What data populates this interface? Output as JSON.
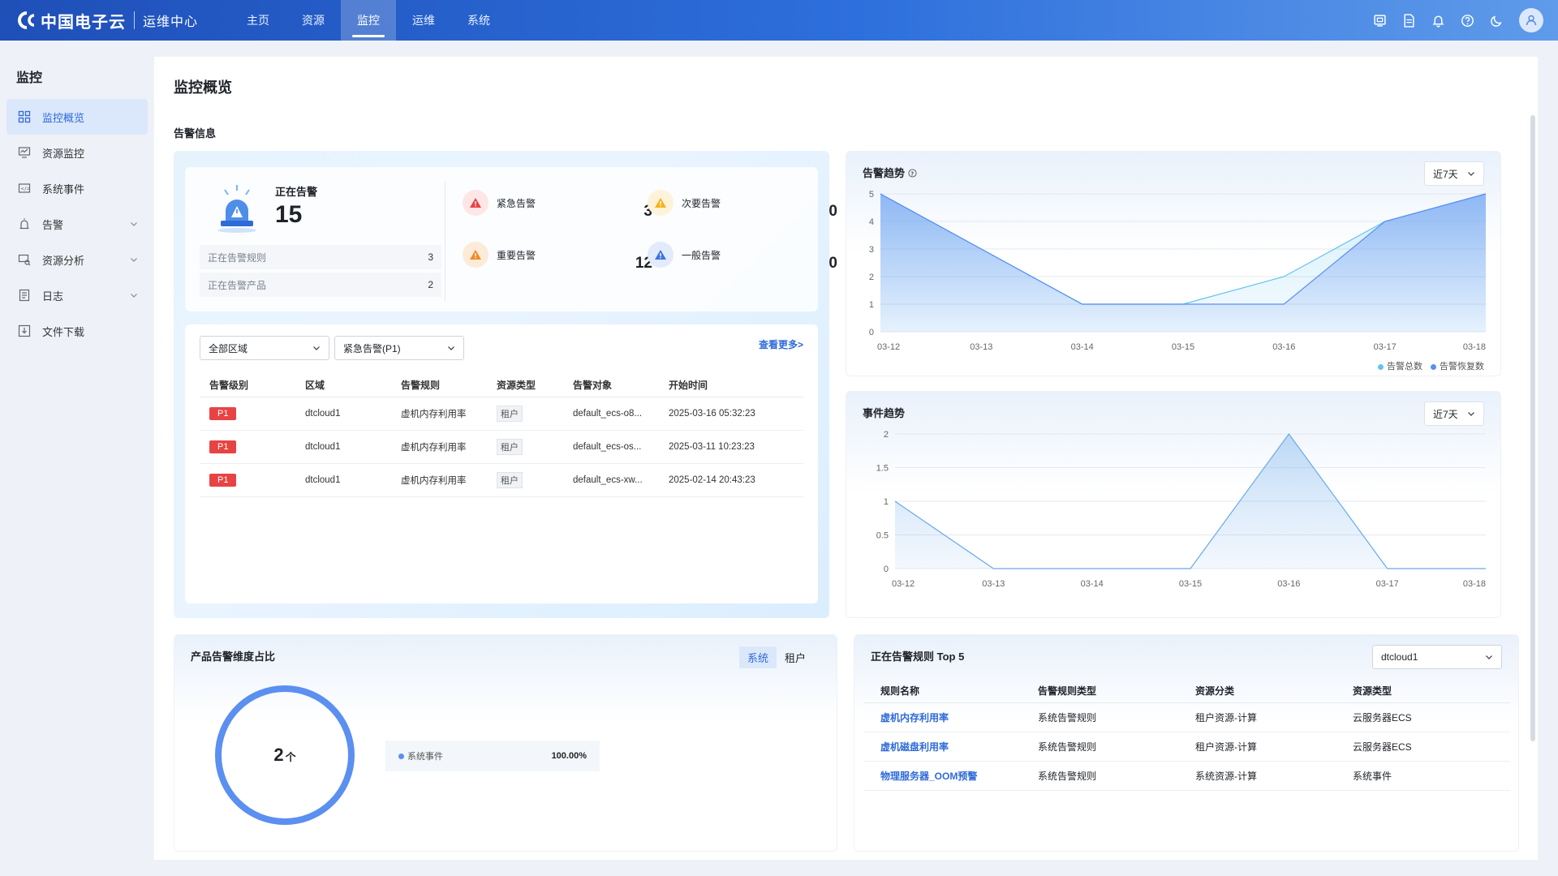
{
  "app": {
    "brand": "中国电子云",
    "subtitle": "运维中心",
    "nav": [
      "主页",
      "资源",
      "监控",
      "运维",
      "系统"
    ],
    "active_nav": "监控",
    "top_icons": [
      "screen-icon",
      "document-icon",
      "bell-icon",
      "help-icon",
      "moon-icon",
      "user-icon"
    ]
  },
  "sidebar": {
    "title": "监控",
    "items": [
      {
        "label": "监控概览",
        "icon": "grid-icon",
        "active": true
      },
      {
        "label": "资源监控",
        "icon": "monitor-icon"
      },
      {
        "label": "系统事件",
        "icon": "event-icon"
      },
      {
        "label": "告警",
        "icon": "alarm-icon",
        "expandable": true
      },
      {
        "label": "资源分析",
        "icon": "analysis-icon",
        "expandable": true
      },
      {
        "label": "日志",
        "icon": "log-icon",
        "expandable": true
      },
      {
        "label": "文件下载",
        "icon": "download-icon"
      }
    ]
  },
  "page": {
    "title": "监控概览",
    "section_alert": "告警信息"
  },
  "alert_summary": {
    "active_label": "正在告警",
    "active_count": "15",
    "rules_label": "正在告警规则",
    "rules_value": "3",
    "products_label": "正在告警产品",
    "products_value": "2",
    "levels": [
      {
        "label": "紧急告警",
        "value": "3",
        "color": "#e84343"
      },
      {
        "label": "次要告警",
        "value": "0",
        "color": "#f5b21b"
      },
      {
        "label": "重要告警",
        "value": "12",
        "color": "#f08a24"
      },
      {
        "label": "一般告警",
        "value": "0",
        "color": "#3f73e0"
      }
    ]
  },
  "alert_list": {
    "region_select": "全部区域",
    "level_select": "紧急告警(P1)",
    "more": "查看更多>",
    "columns": [
      "告警级别",
      "区域",
      "告警规则",
      "资源类型",
      "告警对象",
      "开始时间"
    ],
    "rows": [
      {
        "level": "P1",
        "region": "dtcloud1",
        "rule": "虚机内存利用率",
        "type": "租户",
        "object": "default_ecs-o8...",
        "time": "2025-03-16 05:32:23"
      },
      {
        "level": "P1",
        "region": "dtcloud1",
        "rule": "虚机内存利用率",
        "type": "租户",
        "object": "default_ecs-os...",
        "time": "2025-03-11 10:23:23"
      },
      {
        "level": "P1",
        "region": "dtcloud1",
        "rule": "虚机内存利用率",
        "type": "租户",
        "object": "default_ecs-xw...",
        "time": "2025-02-14 20:43:23"
      }
    ]
  },
  "alert_trend": {
    "title": "告警趋势",
    "range": "近7天"
  },
  "event_trend": {
    "title": "事件趋势",
    "range": "近7天"
  },
  "chart_data": [
    {
      "type": "area",
      "title": "告警趋势",
      "x": [
        "03-12",
        "03-13",
        "03-14",
        "03-15",
        "03-16",
        "03-17",
        "03-18"
      ],
      "ylim": [
        0,
        5
      ],
      "yticks": [
        0,
        1,
        2,
        3,
        4,
        5
      ],
      "series": [
        {
          "name": "告警总数",
          "values": [
            5,
            3,
            1,
            1,
            2,
            4,
            5
          ],
          "color": "#63c3f0"
        },
        {
          "name": "告警恢复数",
          "values": [
            5,
            3,
            1,
            1,
            1,
            4,
            5
          ],
          "color": "#5b8ff0"
        }
      ],
      "legend": "bottom-right"
    },
    {
      "type": "area",
      "title": "事件趋势",
      "x": [
        "03-12",
        "03-13",
        "03-14",
        "03-15",
        "03-16",
        "03-17",
        "03-18"
      ],
      "ylim": [
        0,
        2
      ],
      "yticks": [
        0,
        0.5,
        1,
        1.5,
        2
      ],
      "series": [
        {
          "values": [
            1,
            0,
            0,
            0,
            2,
            0,
            0
          ],
          "color": "#6aa9ea"
        }
      ]
    }
  ],
  "product_ratio": {
    "title": "产品告警维度占比",
    "tabs": [
      "系统",
      "租户"
    ],
    "active_tab": "系统",
    "center_value": "2",
    "center_unit": "个",
    "legend_label": "系统事件",
    "legend_pct": "100.00%",
    "ring_color": "#5b8ff0"
  },
  "top5": {
    "title": "正在告警规则 Top 5",
    "region_select": "dtcloud1",
    "columns": [
      "规则名称",
      "告警规则类型",
      "资源分类",
      "资源类型"
    ],
    "rows": [
      {
        "name": "虚机内存利用率",
        "rule_type": "系统告警规则",
        "category": "租户资源-计算",
        "type": "云服务器ECS"
      },
      {
        "name": "虚机磁盘利用率",
        "rule_type": "系统告警规则",
        "category": "租户资源-计算",
        "type": "云服务器ECS"
      },
      {
        "name": "物理服务器_OOM预警",
        "rule_type": "系统告警规则",
        "category": "系统资源-计算",
        "type": "系统事件"
      }
    ]
  }
}
